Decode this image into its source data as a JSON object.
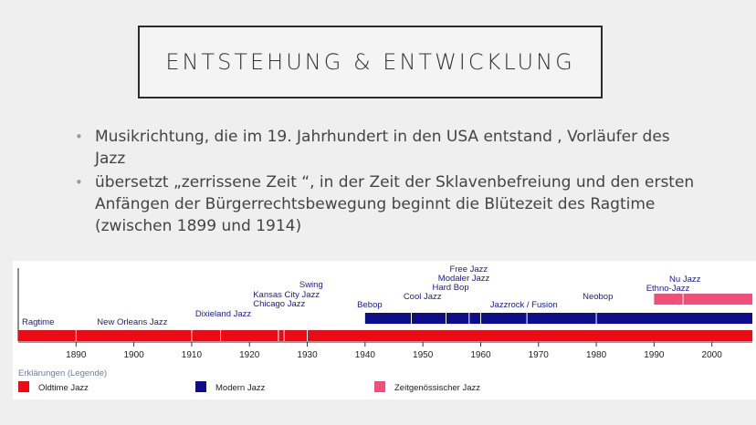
{
  "slide": {
    "title": "ENTSTEHUNG & ENTWICKLUNG",
    "bullets": [
      "Musikrichtung, die im 19. Jahrhundert in den USA entstand , Vorläufer des Jazz",
      "übersetzt „zerrissene Zeit  “, in der Zeit der Sklavenbefreiung und den ersten Anfängen der Bürgerrechtsbewegung beginnt die Blütezeit des Ragtime (zwischen 1899 und 1914)"
    ],
    "bullet_glyph": "•"
  },
  "chart_data": {
    "type": "timeline",
    "axis": {
      "min": 1880,
      "max": 2007,
      "ticks": [
        1890,
        1900,
        1910,
        1920,
        1930,
        1940,
        1950,
        1960,
        1970,
        1980,
        1990,
        2000
      ]
    },
    "series": [
      {
        "name": "Oldtime Jazz",
        "color": "#ee0a14",
        "start": 1880,
        "end": 2007,
        "dividers": [
          1890,
          1910,
          1915,
          1925,
          1926,
          1930
        ]
      },
      {
        "name": "Modern Jazz",
        "color": "#0d0d8c",
        "start": 1940,
        "end": 2007,
        "dividers": [
          1948,
          1954,
          1958,
          1960,
          1968,
          1980
        ]
      },
      {
        "name": "Zeitgenössischer Jazz",
        "color": "#f05078",
        "start": 1990,
        "end": 2007,
        "dividers": [
          1995
        ]
      }
    ],
    "labels": [
      {
        "text": "Ragtime",
        "year": 1880,
        "row": 0
      },
      {
        "text": "New Orleans Jazz",
        "year": 1893,
        "row": 0
      },
      {
        "text": "Dixieland Jazz",
        "year": 1910,
        "row": 1
      },
      {
        "text": "Chicago Jazz",
        "year": 1920,
        "row": 2
      },
      {
        "text": "Kansas City Jazz",
        "year": 1920,
        "row": 3
      },
      {
        "text": "Swing",
        "year": 1928,
        "row": 4
      },
      {
        "text": "Bebop",
        "year": 1938,
        "row": 2
      },
      {
        "text": "Cool Jazz",
        "year": 1946,
        "row": 3
      },
      {
        "text": "Hard Bop",
        "year": 1951,
        "row": 4
      },
      {
        "text": "Modaler Jazz",
        "year": 1952,
        "row": 5
      },
      {
        "text": "Free Jazz",
        "year": 1954,
        "row": 6
      },
      {
        "text": "Jazzrock / Fusion",
        "year": 1961,
        "row": 2
      },
      {
        "text": "Neobop",
        "year": 1977,
        "row": 3
      },
      {
        "text": "Ethno-Jazz",
        "year": 1988,
        "row": 4
      },
      {
        "text": "Nu Jazz",
        "year": 1992,
        "row": 5
      }
    ],
    "legend_title": "Erklärungen (Legende)"
  }
}
